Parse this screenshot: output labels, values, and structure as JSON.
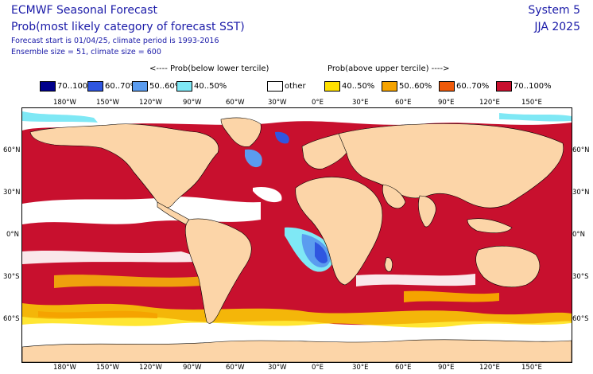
{
  "header": {
    "title": "ECMWF Seasonal Forecast",
    "subtitle": "Prob(most likely category of forecast SST)",
    "forecast_info": "Forecast start is 01/04/25, climate period is 1993-2016",
    "ensemble_info": "Ensemble size = 51, climate size = 600",
    "system": "System 5",
    "season": "JJA 2025"
  },
  "legend": {
    "below_label": "<---- Prob(below lower tercile)",
    "above_label": "Prob(above upper tercile) ---->",
    "items": [
      {
        "label": "70..100%",
        "color": "#00008b"
      },
      {
        "label": "60..70%",
        "color": "#2f56e0"
      },
      {
        "label": "50..60%",
        "color": "#5b9cef"
      },
      {
        "label": "40..50%",
        "color": "#7fe8f5"
      },
      {
        "label": "other",
        "color": "#ffffff"
      },
      {
        "label": "40..50%",
        "color": "#ffe000"
      },
      {
        "label": "50..60%",
        "color": "#f5a300"
      },
      {
        "label": "60..70%",
        "color": "#ef5a0a"
      },
      {
        "label": "70..100%",
        "color": "#c8102e"
      }
    ]
  },
  "map": {
    "land_color": "#fcd5a8",
    "lon_ticks": [
      "180°W",
      "150°W",
      "120°W",
      "90°W",
      "60°W",
      "30°W",
      "0°E",
      "30°E",
      "60°E",
      "90°E",
      "120°E",
      "150°E"
    ],
    "lat_ticks": [
      "60°N",
      "30°N",
      "0°N",
      "30°S",
      "60°S"
    ]
  }
}
